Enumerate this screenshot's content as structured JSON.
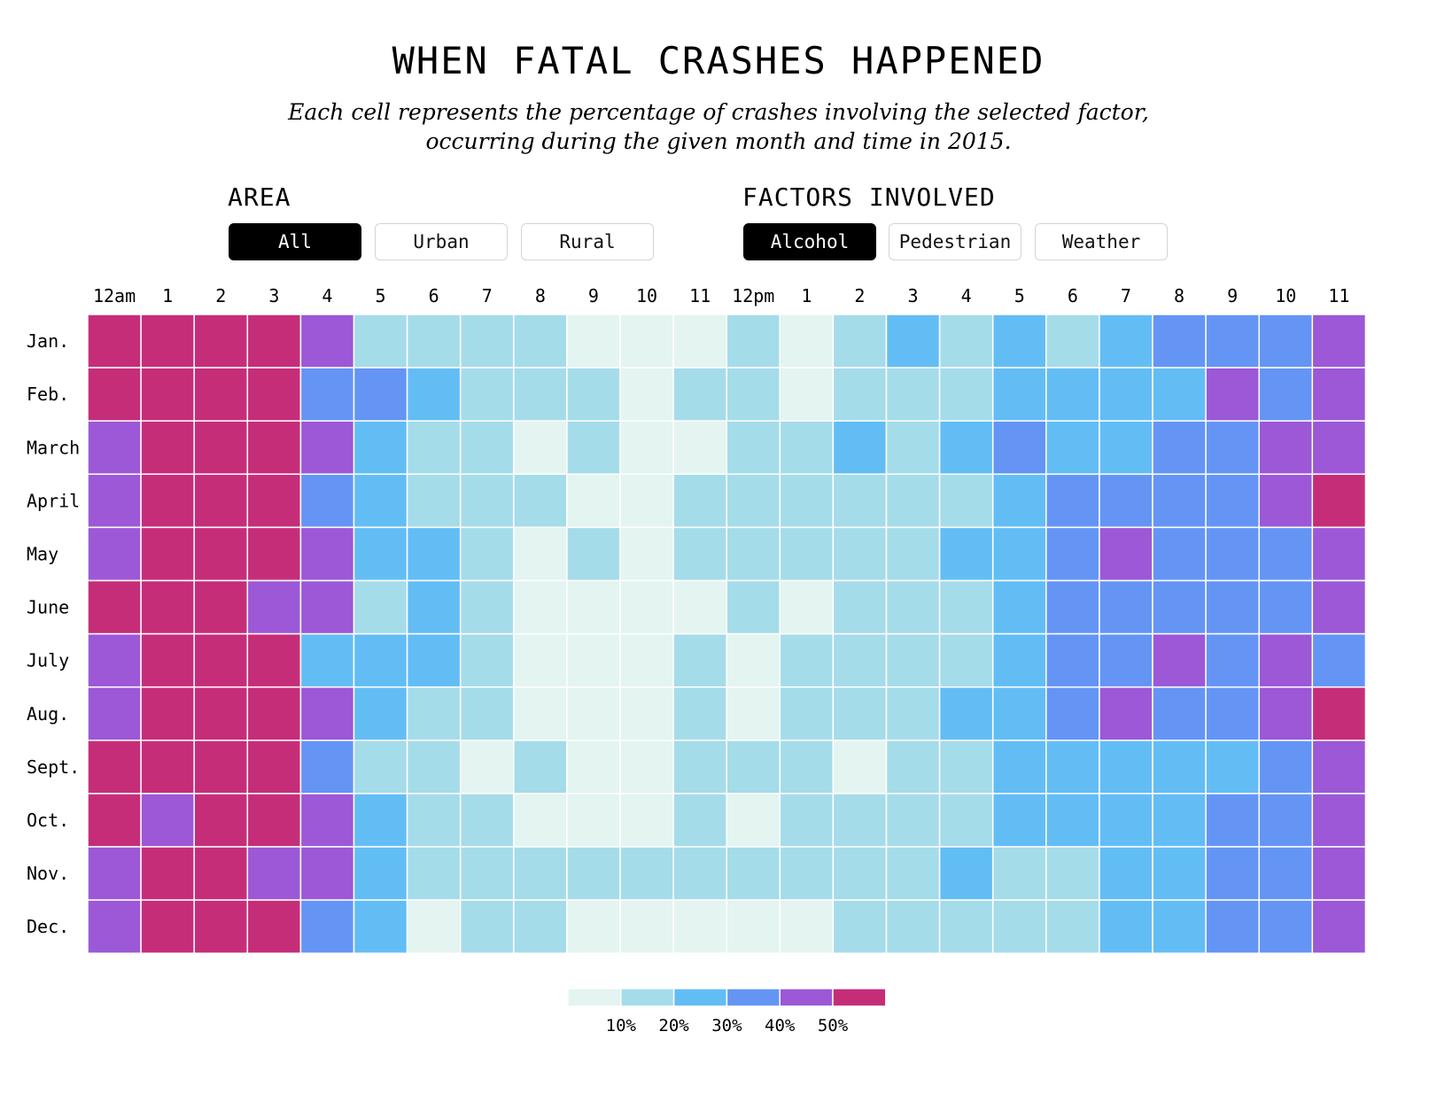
{
  "title": "WHEN FATAL CRASHES HAPPENED",
  "subtitle": "Each cell represents the percentage of crashes involving the selected factor, occurring during the given month and time in 2015.",
  "area": {
    "label": "AREA",
    "options": [
      "All",
      "Urban",
      "Rural"
    ],
    "selected": "All"
  },
  "factors": {
    "label": "FACTORS INVOLVED",
    "options": [
      "Alcohol",
      "Pedestrian",
      "Weather"
    ],
    "selected": "Alcohol"
  },
  "colors": {
    "bin1": "#e3f4f1",
    "bin2": "#a5dcea",
    "bin3": "#63bdf5",
    "bin4": "#6495f5",
    "bin5": "#9c58d6",
    "bin6": "#c62d79"
  },
  "chart_data": {
    "type": "heatmap",
    "x": [
      "12am",
      "1",
      "2",
      "3",
      "4",
      "5",
      "6",
      "7",
      "8",
      "9",
      "10",
      "11",
      "12pm",
      "1",
      "2",
      "3",
      "4",
      "5",
      "6",
      "7",
      "8",
      "9",
      "10",
      "11"
    ],
    "y": [
      "Jan.",
      "Feb.",
      "March",
      "April",
      "May",
      "June",
      "July",
      "Aug.",
      "Sept.",
      "Oct.",
      "Nov.",
      "Dec."
    ],
    "value_encoding": "binned percentage; 5 = 0-10%, 15 = 10-20%, 25 = 20-30%, 35 = 30-40%, 45 = 40-50%, 55 = 50%+",
    "values": [
      [
        55,
        55,
        55,
        55,
        45,
        15,
        15,
        15,
        15,
        5,
        5,
        5,
        15,
        5,
        15,
        25,
        15,
        25,
        15,
        25,
        35,
        35,
        35,
        45
      ],
      [
        55,
        55,
        55,
        55,
        35,
        35,
        25,
        15,
        15,
        15,
        5,
        15,
        15,
        5,
        15,
        15,
        15,
        25,
        25,
        25,
        25,
        45,
        35,
        45
      ],
      [
        45,
        55,
        55,
        55,
        45,
        25,
        15,
        15,
        5,
        15,
        5,
        5,
        15,
        15,
        25,
        15,
        25,
        35,
        25,
        25,
        35,
        35,
        45,
        45
      ],
      [
        45,
        55,
        55,
        55,
        35,
        25,
        15,
        15,
        15,
        5,
        5,
        15,
        15,
        15,
        15,
        15,
        15,
        25,
        35,
        35,
        35,
        35,
        45,
        55
      ],
      [
        45,
        55,
        55,
        55,
        45,
        25,
        25,
        15,
        5,
        15,
        5,
        15,
        15,
        15,
        15,
        15,
        25,
        25,
        35,
        45,
        35,
        35,
        35,
        45
      ],
      [
        55,
        55,
        55,
        45,
        45,
        15,
        25,
        15,
        5,
        5,
        5,
        5,
        15,
        5,
        15,
        15,
        15,
        25,
        35,
        35,
        35,
        35,
        35,
        45
      ],
      [
        45,
        55,
        55,
        55,
        25,
        25,
        25,
        15,
        5,
        5,
        5,
        15,
        5,
        15,
        15,
        15,
        15,
        25,
        35,
        35,
        45,
        35,
        45,
        35
      ],
      [
        45,
        55,
        55,
        55,
        45,
        25,
        15,
        15,
        5,
        5,
        5,
        15,
        5,
        15,
        15,
        15,
        25,
        25,
        35,
        45,
        35,
        35,
        45,
        55
      ],
      [
        55,
        55,
        55,
        55,
        35,
        15,
        15,
        5,
        15,
        5,
        5,
        15,
        15,
        15,
        5,
        15,
        15,
        25,
        25,
        25,
        25,
        25,
        35,
        45
      ],
      [
        55,
        45,
        55,
        55,
        45,
        25,
        15,
        15,
        5,
        5,
        5,
        15,
        5,
        15,
        15,
        15,
        15,
        25,
        25,
        25,
        25,
        35,
        35,
        45
      ],
      [
        45,
        55,
        55,
        45,
        45,
        25,
        15,
        15,
        15,
        15,
        15,
        15,
        15,
        15,
        15,
        15,
        25,
        15,
        15,
        25,
        25,
        35,
        35,
        45
      ],
      [
        45,
        55,
        55,
        55,
        35,
        25,
        5,
        15,
        15,
        5,
        5,
        5,
        5,
        5,
        15,
        15,
        15,
        15,
        15,
        25,
        25,
        35,
        35,
        45
      ]
    ],
    "legend": {
      "labels": [
        "10%",
        "20%",
        "30%",
        "40%",
        "50%"
      ],
      "placement": "bottom-center"
    }
  }
}
